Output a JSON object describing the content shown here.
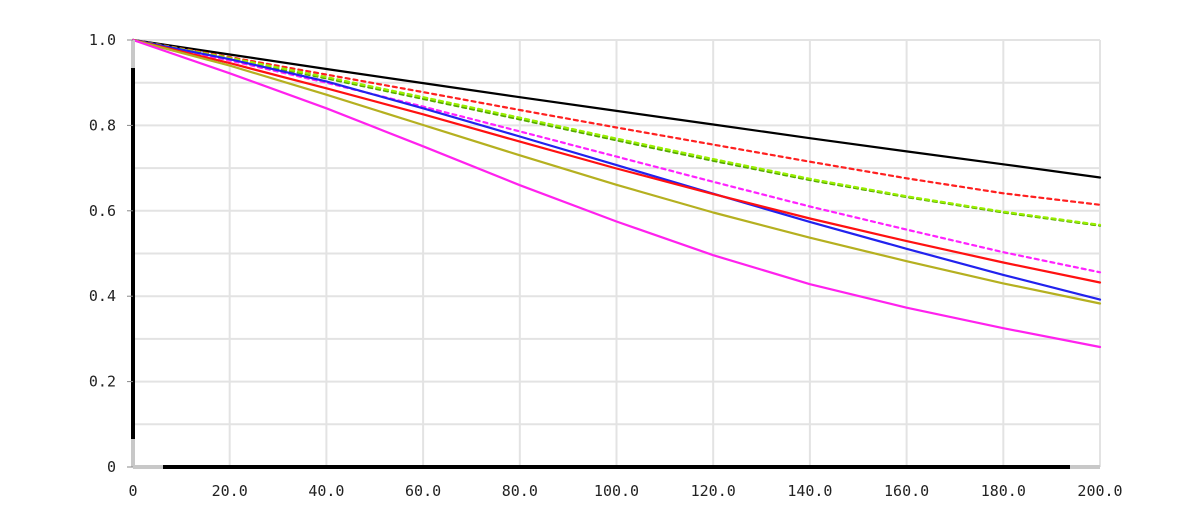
{
  "chart_data": {
    "type": "line",
    "title": "",
    "xlabel": "",
    "ylabel": "",
    "xlim": [
      0,
      200
    ],
    "ylim": [
      0,
      1
    ],
    "grid": true,
    "x_ticks": [
      "0",
      "20.0",
      "40.0",
      "60.0",
      "80.0",
      "100.0",
      "120.0",
      "140.0",
      "160.0",
      "180.0",
      "200.0"
    ],
    "y_ticks": [
      "0",
      "0.2",
      "0.4",
      "0.6",
      "0.8",
      "1.0"
    ],
    "x": [
      0,
      20,
      40,
      60,
      80,
      100,
      120,
      140,
      160,
      180,
      200
    ],
    "series": [
      {
        "color": "#000000",
        "dash": false,
        "values": [
          1.0,
          0.966,
          0.932,
          0.899,
          0.866,
          0.834,
          0.802,
          0.77,
          0.739,
          0.709,
          0.678
        ]
      },
      {
        "color": "#ff2020",
        "dash": true,
        "values": [
          1.0,
          0.96,
          0.919,
          0.878,
          0.836,
          0.795,
          0.755,
          0.715,
          0.676,
          0.641,
          0.614
        ]
      },
      {
        "color": "#55aa00",
        "dash": true,
        "values": [
          1.0,
          0.956,
          0.91,
          0.862,
          0.814,
          0.765,
          0.717,
          0.672,
          0.632,
          0.596,
          0.565
        ]
      },
      {
        "color": "#99ee00",
        "dash": true,
        "values": [
          1.0,
          0.958,
          0.913,
          0.866,
          0.818,
          0.769,
          0.721,
          0.675,
          0.634,
          0.598,
          0.567
        ]
      },
      {
        "color": "#ff22ff",
        "dash": true,
        "values": [
          1.0,
          0.952,
          0.9,
          0.844,
          0.786,
          0.727,
          0.668,
          0.61,
          0.556,
          0.503,
          0.456
        ]
      },
      {
        "color": "#2222ee",
        "dash": false,
        "values": [
          1.0,
          0.955,
          0.903,
          0.84,
          0.774,
          0.707,
          0.64,
          0.574,
          0.511,
          0.45,
          0.392
        ]
      },
      {
        "color": "#ff1111",
        "dash": false,
        "values": [
          1.0,
          0.946,
          0.887,
          0.826,
          0.762,
          0.699,
          0.639,
          0.582,
          0.529,
          0.479,
          0.432
        ]
      },
      {
        "color": "#b5b020",
        "dash": false,
        "values": [
          1.0,
          0.94,
          0.872,
          0.801,
          0.73,
          0.661,
          0.596,
          0.537,
          0.482,
          0.43,
          0.383
        ]
      },
      {
        "color": "#ff22ee",
        "dash": false,
        "values": [
          1.0,
          0.922,
          0.84,
          0.751,
          0.66,
          0.575,
          0.496,
          0.428,
          0.373,
          0.325,
          0.281
        ]
      }
    ]
  }
}
